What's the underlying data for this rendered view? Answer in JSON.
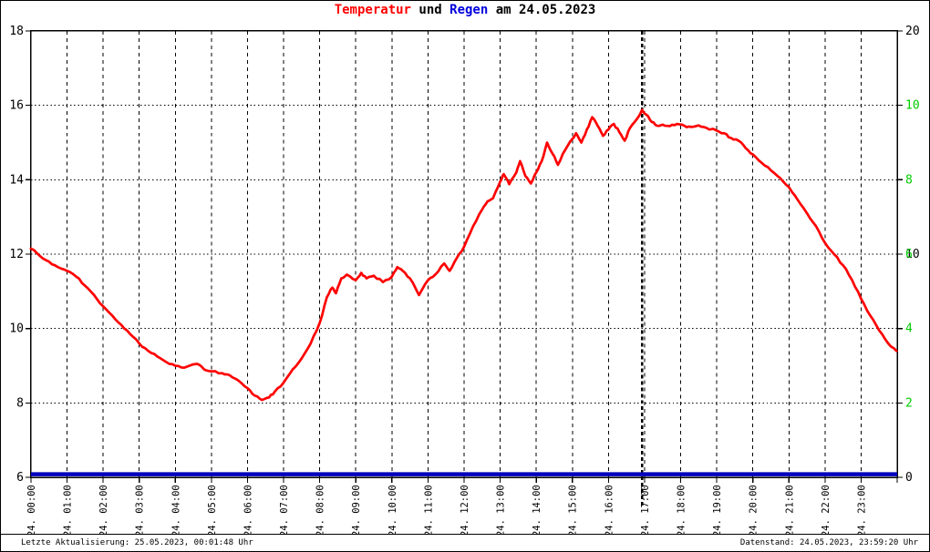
{
  "title": {
    "parts": [
      {
        "text": "Temperatur",
        "color": "#ff0000"
      },
      {
        "text": " und ",
        "color": "#000000"
      },
      {
        "text": "Regen",
        "color": "#0000dd"
      },
      {
        "text": " am 24.05.2023",
        "color": "#000000"
      }
    ]
  },
  "footer": {
    "left": "Letzte Aktualisierung: 25.05.2023, 00:01:48 Uhr",
    "right": "Datenstand: 24.05.2023, 23:59:20 Uhr"
  },
  "colors": {
    "temperature_line": "#ff0000",
    "rain_line": "#0000bb",
    "right_axis_green": "#00cc00",
    "axis_black": "#000000",
    "grid": "#000000"
  },
  "chart_data": {
    "type": "line",
    "title": "Temperatur und Regen am 24.05.2023",
    "grid": true,
    "x_axis": {
      "range_hours": [
        0,
        24
      ],
      "tick_every_hours": 1,
      "labels": [
        "24. 00:00",
        "24. 01:00",
        "24. 02:00",
        "24. 03:00",
        "24. 04:00",
        "24. 05:00",
        "24. 06:00",
        "24. 07:00",
        "24. 08:00",
        "24. 09:00",
        "24. 10:00",
        "24. 11:00",
        "24. 12:00",
        "24. 13:00",
        "24. 14:00",
        "24. 15:00",
        "24. 16:00",
        "24. 17:00",
        "24. 18:00",
        "24. 19:00",
        "24. 20:00",
        "24. 21:00",
        "24. 22:00",
        "24. 23:00"
      ]
    },
    "y_axis_left": {
      "unit": "Temperatur",
      "range": [
        6,
        18
      ],
      "ticks": [
        18,
        16,
        14,
        12,
        10,
        8,
        6
      ],
      "color": "#000000"
    },
    "y_axis_right": {
      "unit": "Regen",
      "range": [
        0,
        20
      ],
      "labels": [
        {
          "at_left_value": 18,
          "text": "20",
          "color": "#000000"
        },
        {
          "at_left_value": 16,
          "text": "10",
          "color": "#00cc00"
        },
        {
          "at_left_value": 14,
          "text": "8",
          "color": "#00cc00"
        },
        {
          "at_left_value": 12,
          "text": "10",
          "color": "#000000"
        },
        {
          "at_left_value": 12,
          "text": "6",
          "color": "#00cc00"
        },
        {
          "at_left_value": 10,
          "text": "4",
          "color": "#00cc00"
        },
        {
          "at_left_value": 8,
          "text": "2",
          "color": "#00cc00"
        },
        {
          "at_left_value": 6,
          "text": "0",
          "color": "#000000"
        }
      ]
    },
    "marker_line": {
      "at_hour": 16.93,
      "style": "dashed",
      "color": "#000000",
      "meaning": "time of temperature maximum"
    },
    "series": [
      {
        "name": "Temperatur",
        "axis": "left",
        "color": "#ff0000",
        "points": [
          [
            0,
            12.15
          ],
          [
            0.25,
            11.95
          ],
          [
            0.5,
            11.8
          ],
          [
            0.75,
            11.65
          ],
          [
            1,
            11.55
          ],
          [
            1.25,
            11.4
          ],
          [
            1.5,
            11.15
          ],
          [
            1.75,
            10.9
          ],
          [
            2,
            10.6
          ],
          [
            2.25,
            10.35
          ],
          [
            2.5,
            10.1
          ],
          [
            2.75,
            9.85
          ],
          [
            3,
            9.6
          ],
          [
            3.25,
            9.4
          ],
          [
            3.5,
            9.25
          ],
          [
            3.75,
            9.1
          ],
          [
            4,
            9.0
          ],
          [
            4.25,
            8.95
          ],
          [
            4.6,
            9.05
          ],
          [
            4.8,
            8.9
          ],
          [
            5,
            8.85
          ],
          [
            5.3,
            8.8
          ],
          [
            5.5,
            8.75
          ],
          [
            5.75,
            8.6
          ],
          [
            6,
            8.4
          ],
          [
            6.2,
            8.2
          ],
          [
            6.4,
            8.08
          ],
          [
            6.6,
            8.15
          ],
          [
            6.75,
            8.3
          ],
          [
            7,
            8.55
          ],
          [
            7.25,
            8.9
          ],
          [
            7.5,
            9.2
          ],
          [
            7.75,
            9.6
          ],
          [
            8,
            10.15
          ],
          [
            8.2,
            10.85
          ],
          [
            8.35,
            11.1
          ],
          [
            8.45,
            10.95
          ],
          [
            8.6,
            11.35
          ],
          [
            8.75,
            11.45
          ],
          [
            9,
            11.3
          ],
          [
            9.15,
            11.5
          ],
          [
            9.3,
            11.35
          ],
          [
            9.5,
            11.42
          ],
          [
            9.75,
            11.25
          ],
          [
            10,
            11.4
          ],
          [
            10.15,
            11.65
          ],
          [
            10.3,
            11.55
          ],
          [
            10.5,
            11.35
          ],
          [
            10.75,
            10.9
          ],
          [
            11,
            11.3
          ],
          [
            11.2,
            11.45
          ],
          [
            11.45,
            11.75
          ],
          [
            11.6,
            11.55
          ],
          [
            11.8,
            11.9
          ],
          [
            12,
            12.2
          ],
          [
            12.25,
            12.75
          ],
          [
            12.5,
            13.2
          ],
          [
            12.65,
            13.42
          ],
          [
            12.8,
            13.5
          ],
          [
            13,
            13.95
          ],
          [
            13.1,
            14.15
          ],
          [
            13.25,
            13.88
          ],
          [
            13.45,
            14.2
          ],
          [
            13.55,
            14.5
          ],
          [
            13.7,
            14.1
          ],
          [
            13.85,
            13.9
          ],
          [
            14,
            14.2
          ],
          [
            14.15,
            14.5
          ],
          [
            14.3,
            15.0
          ],
          [
            14.45,
            14.7
          ],
          [
            14.6,
            14.4
          ],
          [
            14.8,
            14.8
          ],
          [
            15,
            15.1
          ],
          [
            15.1,
            15.25
          ],
          [
            15.25,
            15.0
          ],
          [
            15.4,
            15.35
          ],
          [
            15.55,
            15.68
          ],
          [
            15.7,
            15.45
          ],
          [
            15.85,
            15.18
          ],
          [
            16,
            15.35
          ],
          [
            16.15,
            15.5
          ],
          [
            16.3,
            15.28
          ],
          [
            16.45,
            15.05
          ],
          [
            16.6,
            15.4
          ],
          [
            16.8,
            15.65
          ],
          [
            16.93,
            15.88
          ],
          [
            17.05,
            15.75
          ],
          [
            17.2,
            15.55
          ],
          [
            17.35,
            15.45
          ],
          [
            17.5,
            15.48
          ],
          [
            17.7,
            15.44
          ],
          [
            17.9,
            15.5
          ],
          [
            18.1,
            15.45
          ],
          [
            18.3,
            15.42
          ],
          [
            18.5,
            15.46
          ],
          [
            18.7,
            15.4
          ],
          [
            19,
            15.32
          ],
          [
            19.2,
            15.25
          ],
          [
            19.4,
            15.12
          ],
          [
            19.6,
            15.05
          ],
          [
            19.8,
            14.85
          ],
          [
            20,
            14.68
          ],
          [
            20.25,
            14.45
          ],
          [
            20.5,
            14.25
          ],
          [
            20.75,
            14.05
          ],
          [
            21,
            13.8
          ],
          [
            21.25,
            13.45
          ],
          [
            21.5,
            13.1
          ],
          [
            21.75,
            12.75
          ],
          [
            22,
            12.3
          ],
          [
            22.25,
            12.0
          ],
          [
            22.5,
            11.7
          ],
          [
            22.75,
            11.3
          ],
          [
            23,
            10.8
          ],
          [
            23.25,
            10.35
          ],
          [
            23.5,
            9.95
          ],
          [
            23.75,
            9.6
          ],
          [
            23.98,
            9.4
          ]
        ]
      },
      {
        "name": "Regen",
        "axis": "right",
        "color": "#0000bb",
        "points": [
          [
            0,
            0
          ],
          [
            24,
            0
          ]
        ]
      }
    ]
  }
}
